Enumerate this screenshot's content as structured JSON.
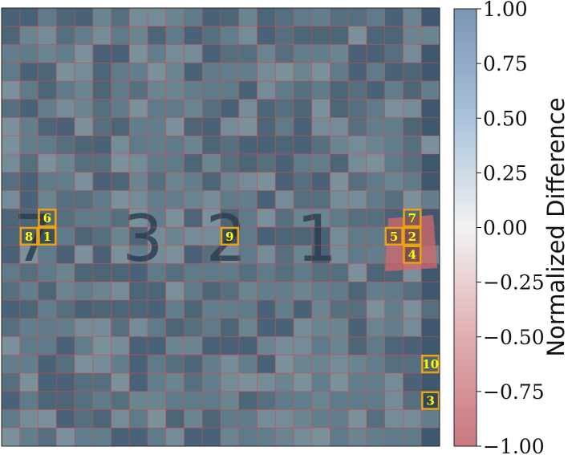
{
  "chart_data": {
    "type": "heatmap",
    "title": "",
    "grid": {
      "rows": 24,
      "cols": 24,
      "cell_borders": "#d94a4a"
    },
    "background_digits": [
      "7",
      "3",
      "2",
      "1"
    ],
    "colorbar": {
      "label": "Normalized Difference",
      "range": [
        -1.0,
        1.0
      ],
      "ticks": [
        "1.00",
        "0.75",
        "0.50",
        "0.25",
        "0.00",
        "−0.25",
        "−0.50",
        "−0.75",
        "−1.00"
      ],
      "tick_values": [
        1.0,
        0.75,
        0.5,
        0.25,
        0.0,
        -0.25,
        -0.5,
        -0.75,
        -1.0
      ],
      "colors": {
        "high": "#7b95b5",
        "mid": "#f2f2f2",
        "low": "#c9787f"
      }
    },
    "highlighted_cells": [
      {
        "label": "1",
        "row": 12,
        "col": 2
      },
      {
        "label": "2",
        "row": 12,
        "col": 22
      },
      {
        "label": "3",
        "row": 21,
        "col": 23
      },
      {
        "label": "4",
        "row": 13,
        "col": 22
      },
      {
        "label": "5",
        "row": 12,
        "col": 21
      },
      {
        "label": "6",
        "row": 11,
        "col": 2
      },
      {
        "label": "7",
        "row": 11,
        "col": 22
      },
      {
        "label": "8",
        "row": 12,
        "col": 1
      },
      {
        "label": "9",
        "row": 12,
        "col": 12
      },
      {
        "label": "10",
        "row": 19,
        "col": 23
      }
    ],
    "marker_colors": {
      "border": "#e8a317",
      "text": "#ffff00"
    }
  }
}
